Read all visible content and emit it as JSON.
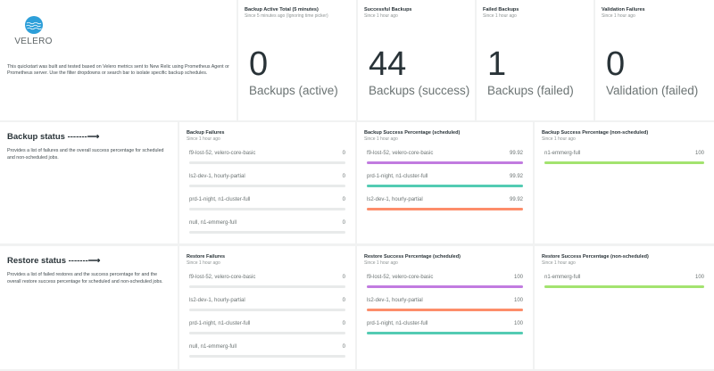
{
  "intro": {
    "logo_text": "VELERO",
    "description": "This quickstart was built and tested based on Velero metrics sent to New Relic using Prometheus Agent or Prometheus server. Use the filter dropdowns or search bar to isolate specific backup schedules."
  },
  "billboards": [
    {
      "title": "Backup Active Total (5 minutes)",
      "subtitle": "Since 5 minutes ago (Ignoring time picker)",
      "value": "0",
      "unit": "Backups (active)"
    },
    {
      "title": "Successful Backups",
      "subtitle": "Since 1 hour ago",
      "value": "44",
      "unit": "Backups (success)"
    },
    {
      "title": "Failed Backups",
      "subtitle": "Since 1 hour ago",
      "value": "1",
      "unit": "Backups (failed)"
    },
    {
      "title": "Validation Failures",
      "subtitle": "Since 1 hour ago",
      "value": "0",
      "unit": "Validation (failed)"
    }
  ],
  "sections": [
    {
      "title": "Backup status -------⟶",
      "description": "Provides a list of failures and the overall success percentage for scheduled and non-scheduled jobs.",
      "widgets": [
        {
          "title": "Backup Failures",
          "subtitle": "Since 1 hour ago",
          "max": 1,
          "items": [
            {
              "label": "f9-lost-52, velero-core-basic",
              "value": 0,
              "color": "#e8eaea"
            },
            {
              "label": "ls2-dev-1, hourly-partial",
              "value": 0,
              "color": "#e8eaea"
            },
            {
              "label": "prd-1-night, n1-cluster-full",
              "value": 0,
              "color": "#e8eaea"
            },
            {
              "label": "null, n1-emmerg-full",
              "value": 0,
              "color": "#e8eaea"
            }
          ]
        },
        {
          "title": "Backup Success Percentage (scheduled)",
          "subtitle": "Since 1 hour ago",
          "max": 99.92,
          "items": [
            {
              "label": "f9-lost-52, velero-core-basic",
              "value": 99.92,
              "color": "#c17be0"
            },
            {
              "label": "prd-1-night, n1-cluster-full",
              "value": 99.92,
              "color": "#53cbb3"
            },
            {
              "label": "ls2-dev-1, hourly-partial",
              "value": 99.92,
              "color": "#fd8d6a"
            }
          ]
        },
        {
          "title": "Backup Success Percentage (non-scheduled)",
          "subtitle": "Since 1 hour ago",
          "max": 100,
          "items": [
            {
              "label": "n1-emmerg-full",
              "value": 100,
              "color": "#a3e36f"
            }
          ]
        }
      ]
    },
    {
      "title": "Restore status -------⟶",
      "description": "Provides a list of failed restores and the success percentage for and the overall restore success percentage for scheduled and non-scheduled jobs.",
      "widgets": [
        {
          "title": "Restore Failures",
          "subtitle": "Since 1 hour ago",
          "max": 1,
          "items": [
            {
              "label": "f9-lost-52, velero-core-basic",
              "value": 0,
              "color": "#e8eaea"
            },
            {
              "label": "ls2-dev-1, hourly-partial",
              "value": 0,
              "color": "#e8eaea"
            },
            {
              "label": "prd-1-night, n1-cluster-full",
              "value": 0,
              "color": "#e8eaea"
            },
            {
              "label": "null, n1-emmerg-full",
              "value": 0,
              "color": "#e8eaea"
            }
          ]
        },
        {
          "title": "Restore Success Percentage (scheduled)",
          "subtitle": "Since 1 hour ago",
          "max": 100,
          "items": [
            {
              "label": "f9-lost-52, velero-core-basic",
              "value": 100,
              "color": "#c17be0"
            },
            {
              "label": "ls2-dev-1, hourly-partial",
              "value": 100,
              "color": "#fd8d6a"
            },
            {
              "label": "prd-1-night, n1-cluster-full",
              "value": 100,
              "color": "#53cbb3"
            }
          ]
        },
        {
          "title": "Restore Success Percentage (non-scheduled)",
          "subtitle": "Since 1 hour ago",
          "max": 100,
          "items": [
            {
              "label": "n1-emmerg-full",
              "value": 100,
              "color": "#a3e36f"
            }
          ]
        }
      ]
    }
  ]
}
